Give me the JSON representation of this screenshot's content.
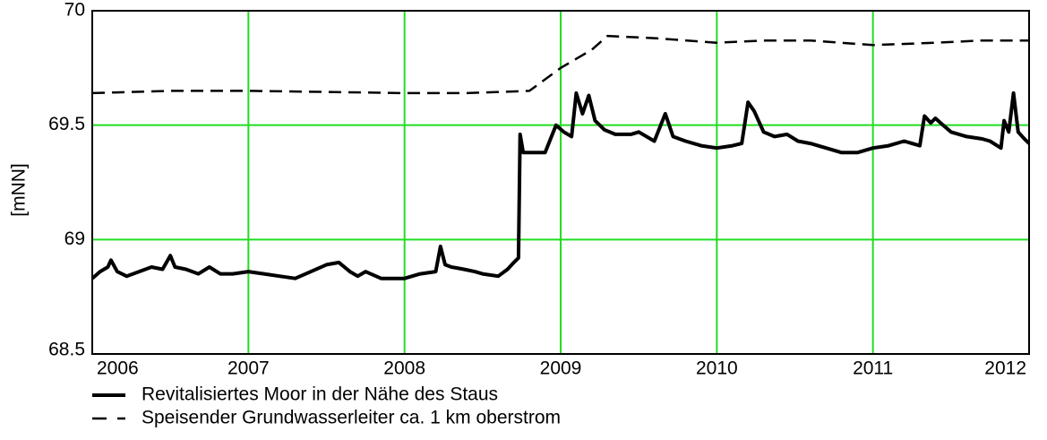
{
  "chart_data": {
    "type": "line",
    "ylabel": "[mNN]",
    "xlim": [
      2006,
      2012
    ],
    "xticks": [
      2006,
      2007,
      2008,
      2009,
      2010,
      2011,
      2012
    ],
    "ylim": [
      68.5,
      70
    ],
    "yticks": [
      68.5,
      69,
      69.5,
      70
    ],
    "grid": true,
    "grid_color": "#22dd22",
    "legend": "bottom-left",
    "series": [
      {
        "name": "Revitalisiertes Moor in der Nähe des Staus",
        "color": "#000000",
        "line_style": "solid",
        "x": [
          2006,
          2006.05,
          2006.1,
          2006.12,
          2006.16,
          2006.22,
          2006.3,
          2006.38,
          2006.45,
          2006.5,
          2006.53,
          2006.6,
          2006.68,
          2006.75,
          2006.82,
          2006.9,
          2007,
          2007.1,
          2007.2,
          2007.3,
          2007.4,
          2007.5,
          2007.58,
          2007.65,
          2007.7,
          2007.75,
          2007.85,
          2008,
          2008.1,
          2008.2,
          2008.23,
          2008.26,
          2008.3,
          2008.38,
          2008.45,
          2008.5,
          2008.6,
          2008.66,
          2008.7,
          2008.73,
          2008.74,
          2008.76,
          2008.82,
          2008.9,
          2008.97,
          2009.02,
          2009.07,
          2009.1,
          2009.14,
          2009.18,
          2009.22,
          2009.28,
          2009.35,
          2009.45,
          2009.5,
          2009.6,
          2009.67,
          2009.72,
          2009.8,
          2009.9,
          2010,
          2010.1,
          2010.16,
          2010.2,
          2010.24,
          2010.3,
          2010.37,
          2010.45,
          2010.52,
          2010.6,
          2010.7,
          2010.8,
          2010.9,
          2011,
          2011.1,
          2011.2,
          2011.3,
          2011.33,
          2011.37,
          2011.4,
          2011.45,
          2011.5,
          2011.6,
          2011.7,
          2011.75,
          2011.82,
          2011.84,
          2011.87,
          2011.9,
          2011.93,
          2011.97,
          2012
        ],
        "values": [
          68.83,
          68.86,
          68.88,
          68.91,
          68.86,
          68.84,
          68.86,
          68.88,
          68.87,
          68.93,
          68.88,
          68.87,
          68.85,
          68.88,
          68.85,
          68.85,
          68.86,
          68.85,
          68.84,
          68.83,
          68.86,
          68.89,
          68.9,
          68.86,
          68.84,
          68.86,
          68.83,
          68.83,
          68.85,
          68.86,
          68.97,
          68.89,
          68.88,
          68.87,
          68.86,
          68.85,
          68.84,
          68.87,
          68.9,
          68.92,
          69.46,
          69.38,
          69.38,
          69.38,
          69.5,
          69.47,
          69.45,
          69.64,
          69.55,
          69.63,
          69.52,
          69.48,
          69.46,
          69.46,
          69.47,
          69.43,
          69.55,
          69.45,
          69.43,
          69.41,
          69.4,
          69.41,
          69.42,
          69.6,
          69.56,
          69.47,
          69.45,
          69.46,
          69.43,
          69.42,
          69.4,
          69.38,
          69.38,
          69.4,
          69.41,
          69.43,
          69.41,
          69.54,
          69.51,
          69.53,
          69.5,
          69.47,
          69.45,
          69.44,
          69.43,
          69.4,
          69.52,
          69.47,
          69.64,
          69.47,
          69.44,
          69.42
        ]
      },
      {
        "name": "Speisender Grundwasserleiter ca. 1 km oberstrom",
        "color": "#000000",
        "line_style": "dashed",
        "x": [
          2006,
          2006.5,
          2007,
          2007.5,
          2008,
          2008.4,
          2008.8,
          2009,
          2009.2,
          2009.3,
          2009.6,
          2010,
          2010.3,
          2010.6,
          2011,
          2011.4,
          2011.7,
          2012
        ],
        "values": [
          69.64,
          69.65,
          69.65,
          69.645,
          69.64,
          69.64,
          69.65,
          69.75,
          69.83,
          69.89,
          69.88,
          69.86,
          69.87,
          69.87,
          69.85,
          69.86,
          69.87,
          69.87
        ]
      }
    ]
  }
}
